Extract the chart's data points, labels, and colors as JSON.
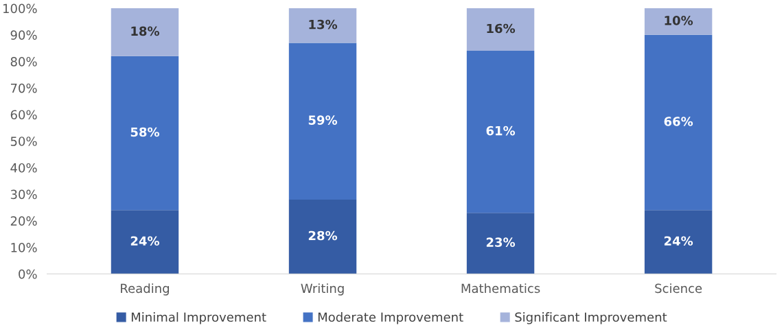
{
  "chart_data": {
    "type": "bar",
    "stacked": true,
    "categories": [
      "Reading",
      "Writing",
      "Mathematics",
      "Science"
    ],
    "series": [
      {
        "name": "Minimal Improvement",
        "color": "#355ca4",
        "values": [
          24,
          28,
          23,
          24
        ]
      },
      {
        "name": "Moderate Improvement",
        "color": "#4472c4",
        "values": [
          58,
          59,
          61,
          66
        ]
      },
      {
        "name": "Significant Improvement",
        "color": "#a5b3db",
        "values": [
          18,
          13,
          16,
          10
        ]
      }
    ],
    "ylim": [
      0,
      100
    ],
    "yticks": [
      {
        "value": 0,
        "label": "0%"
      },
      {
        "value": 10,
        "label": "10%"
      },
      {
        "value": 20,
        "label": "20%"
      },
      {
        "value": 30,
        "label": "30%"
      },
      {
        "value": 40,
        "label": "40%"
      },
      {
        "value": 50,
        "label": "50%"
      },
      {
        "value": 60,
        "label": "60%"
      },
      {
        "value": 70,
        "label": "70%"
      },
      {
        "value": 80,
        "label": "80%"
      },
      {
        "value": 90,
        "label": "90%"
      },
      {
        "value": 100,
        "label": "100%"
      }
    ],
    "value_labels": [
      [
        "24%",
        "28%",
        "23%",
        "24%"
      ],
      [
        "58%",
        "59%",
        "61%",
        "66%"
      ],
      [
        "18%",
        "13%",
        "16%",
        "10%"
      ]
    ],
    "grid": false,
    "legend": "bottom"
  }
}
